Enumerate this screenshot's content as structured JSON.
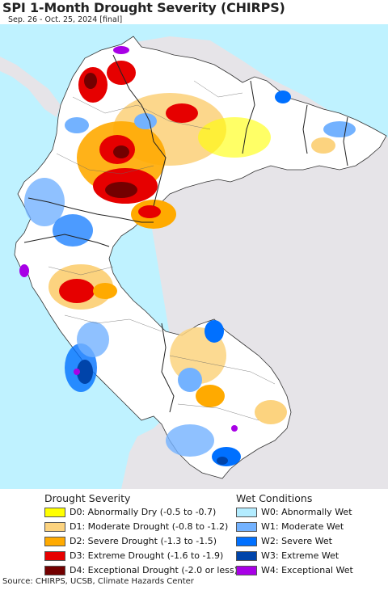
{
  "title": "SPI 1-Month Drought Severity (CHIRPS)",
  "subtitle": "Sep. 26 - Oct. 25, 2024 [final]",
  "colors": {
    "ocean": "#bff2ff",
    "land_outside": "#e6e4e8",
    "land_base": "#ffffff",
    "border": "#333333"
  },
  "legend": {
    "drought_title": "Drought Severity",
    "wet_title": "Wet Conditions",
    "drought_items": [
      {
        "label": "D0: Abnormally Dry (-0.5 to -0.7)",
        "color": "#ffff00"
      },
      {
        "label": "D1: Moderate Drought (-0.8 to -1.2)",
        "color": "#fcd37f"
      },
      {
        "label": "D2: Severe Drought (-1.3 to -1.5)",
        "color": "#ffaa00"
      },
      {
        "label": "D3: Extreme Drought (-1.6 to -1.9)",
        "color": "#e60000"
      },
      {
        "label": "D4: Exceptional Drought (-2.0 or less)",
        "color": "#730000"
      }
    ],
    "wet_items": [
      {
        "label": "W0: Abnormally Wet",
        "color": "#b3ecff"
      },
      {
        "label": "W1: Moderate Wet",
        "color": "#73b2ff"
      },
      {
        "label": "W2: Severe Wet",
        "color": "#0070ff"
      },
      {
        "label": "W3: Extreme Wet",
        "color": "#0044aa"
      },
      {
        "label": "W4: Exceptional Wet",
        "color": "#a800e6"
      }
    ]
  },
  "source": "Source: CHIRPS, UCSB, Climate Hazards Center"
}
